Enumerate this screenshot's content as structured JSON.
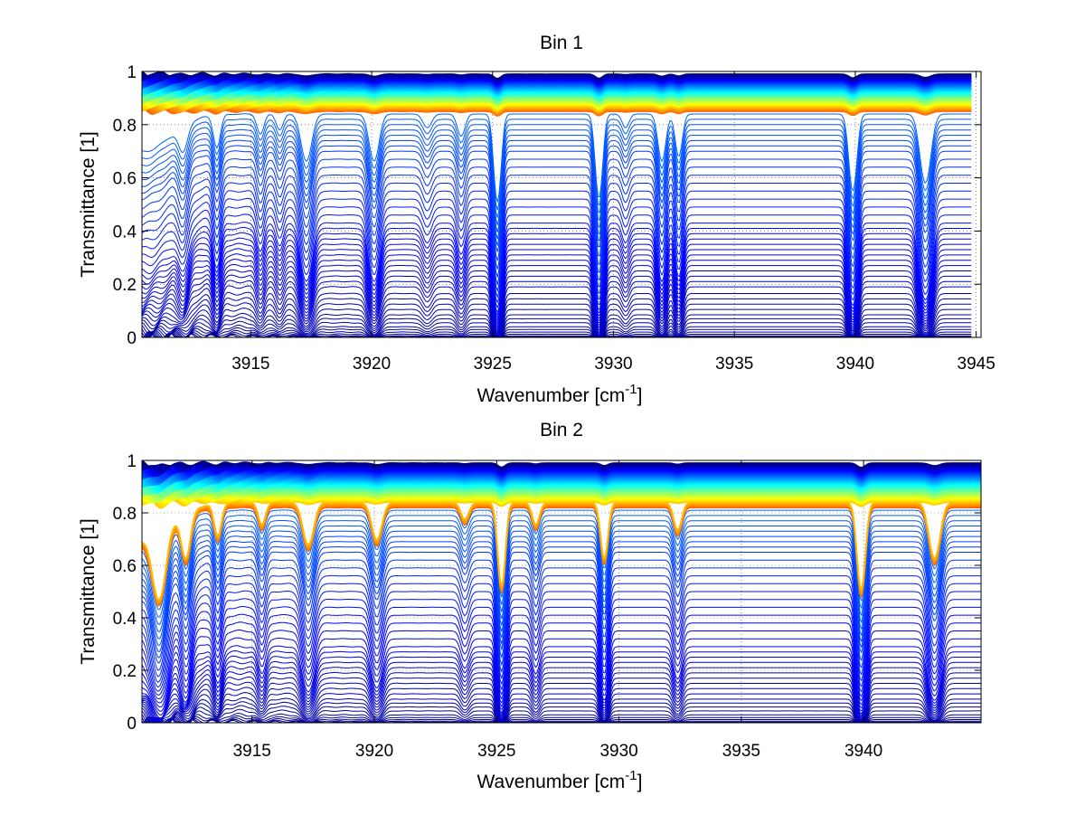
{
  "chart_data": [
    {
      "type": "line",
      "title": "Bin 1",
      "xlabel": "Wavenumber [cm",
      "xlabel_sup": "-1",
      "xlabel_end": "]",
      "ylabel": "Transmittance [1]",
      "xlim": [
        3910.5,
        3945.2
      ],
      "ylim": [
        0,
        1
      ],
      "xticks": [
        3915,
        3920,
        3925,
        3930,
        3935,
        3940,
        3945
      ],
      "xtick_labels": [
        "3915",
        "3920",
        "3925",
        "3930",
        "3935",
        "3940",
        "3945"
      ],
      "yticks": [
        0,
        0.2,
        0.4,
        0.6,
        0.8,
        1
      ],
      "ytick_labels": [
        "0",
        "0.2",
        "0.4",
        "0.6",
        "0.8",
        "1"
      ],
      "grid": true,
      "colormap": "jet",
      "data_x_end": 3944.8,
      "series_count": 120,
      "baseline_levels": {
        "dense_top": [
          0.99,
          0.85
        ],
        "sparse": [
          0.84,
          0.82,
          0.8,
          0.78,
          0.76,
          0.74,
          0.72,
          0.7,
          0.67,
          0.64,
          0.61,
          0.58,
          0.55,
          0.52,
          0.49,
          0.46,
          0.43,
          0.41,
          0.39,
          0.37,
          0.35,
          0.33,
          0.31,
          0.29,
          0.27,
          0.25,
          0.23,
          0.21,
          0.19,
          0.165,
          0.145,
          0.125,
          0.105,
          0.085,
          0.07,
          0.055,
          0.04,
          0.03,
          0.02,
          0.012,
          0.006,
          0.002
        ]
      },
      "absorption_lines": [
        {
          "x": 3912.2,
          "depth": 0.25,
          "width": 0.25
        },
        {
          "x": 3913.6,
          "depth": 0.3,
          "width": 0.2
        },
        {
          "x": 3915.4,
          "depth": 0.18,
          "width": 0.2
        },
        {
          "x": 3916.2,
          "depth": 0.14,
          "width": 0.2
        },
        {
          "x": 3917.3,
          "depth": 0.45,
          "width": 0.3
        },
        {
          "x": 3920.1,
          "depth": 0.45,
          "width": 0.28
        },
        {
          "x": 3922.3,
          "depth": 0.12,
          "width": 0.25
        },
        {
          "x": 3923.7,
          "depth": 0.2,
          "width": 0.22
        },
        {
          "x": 3925.2,
          "depth": 0.95,
          "width": 0.2
        },
        {
          "x": 3929.4,
          "depth": 0.9,
          "width": 0.2
        },
        {
          "x": 3930.5,
          "depth": 0.12,
          "width": 0.2
        },
        {
          "x": 3932.0,
          "depth": 0.45,
          "width": 0.22
        },
        {
          "x": 3932.7,
          "depth": 0.4,
          "width": 0.2
        },
        {
          "x": 3939.9,
          "depth": 0.8,
          "width": 0.22
        },
        {
          "x": 3942.9,
          "depth": 0.7,
          "width": 0.3
        }
      ]
    },
    {
      "type": "line",
      "title": "Bin 2",
      "xlabel": "Wavenumber [cm",
      "xlabel_sup": "-1",
      "xlabel_end": "]",
      "ylabel": "Transmittance [1]",
      "xlim": [
        3910.5,
        3944.8
      ],
      "ylim": [
        0,
        1
      ],
      "xticks": [
        3915,
        3920,
        3925,
        3930,
        3935,
        3940
      ],
      "xtick_labels": [
        "3915",
        "3920",
        "3925",
        "3930",
        "3935",
        "3940"
      ],
      "yticks": [
        0,
        0.2,
        0.4,
        0.6,
        0.8,
        1
      ],
      "ytick_labels": [
        "0",
        "0.2",
        "0.4",
        "0.6",
        "0.8",
        "1"
      ],
      "grid": true,
      "colormap": "jet",
      "data_x_end": 3944.8,
      "series_count": 120,
      "baseline_levels": {
        "dense_top": [
          0.99,
          0.82
        ],
        "sparse": [
          0.81,
          0.79,
          0.77,
          0.75,
          0.73,
          0.71,
          0.69,
          0.67,
          0.65,
          0.62,
          0.59,
          0.56,
          0.53,
          0.5,
          0.47,
          0.44,
          0.41,
          0.38,
          0.35,
          0.32,
          0.29,
          0.27,
          0.25,
          0.23,
          0.21,
          0.19,
          0.17,
          0.15,
          0.13,
          0.11,
          0.09,
          0.075,
          0.06,
          0.045,
          0.03,
          0.02,
          0.012,
          0.006,
          0.002
        ]
      },
      "absorption_lines": [
        {
          "x": 3911.2,
          "depth": 0.8,
          "width": 0.35
        },
        {
          "x": 3912.3,
          "depth": 0.45,
          "width": 0.25
        },
        {
          "x": 3913.6,
          "depth": 0.3,
          "width": 0.2
        },
        {
          "x": 3915.4,
          "depth": 0.2,
          "width": 0.2
        },
        {
          "x": 3917.3,
          "depth": 0.4,
          "width": 0.3
        },
        {
          "x": 3920.1,
          "depth": 0.35,
          "width": 0.28
        },
        {
          "x": 3923.7,
          "depth": 0.15,
          "width": 0.22
        },
        {
          "x": 3925.2,
          "depth": 0.9,
          "width": 0.2
        },
        {
          "x": 3926.6,
          "depth": 0.2,
          "width": 0.2
        },
        {
          "x": 3929.4,
          "depth": 0.55,
          "width": 0.2
        },
        {
          "x": 3932.4,
          "depth": 0.25,
          "width": 0.22
        },
        {
          "x": 3939.9,
          "depth": 0.95,
          "width": 0.22
        },
        {
          "x": 3942.9,
          "depth": 0.55,
          "width": 0.3
        }
      ]
    }
  ]
}
